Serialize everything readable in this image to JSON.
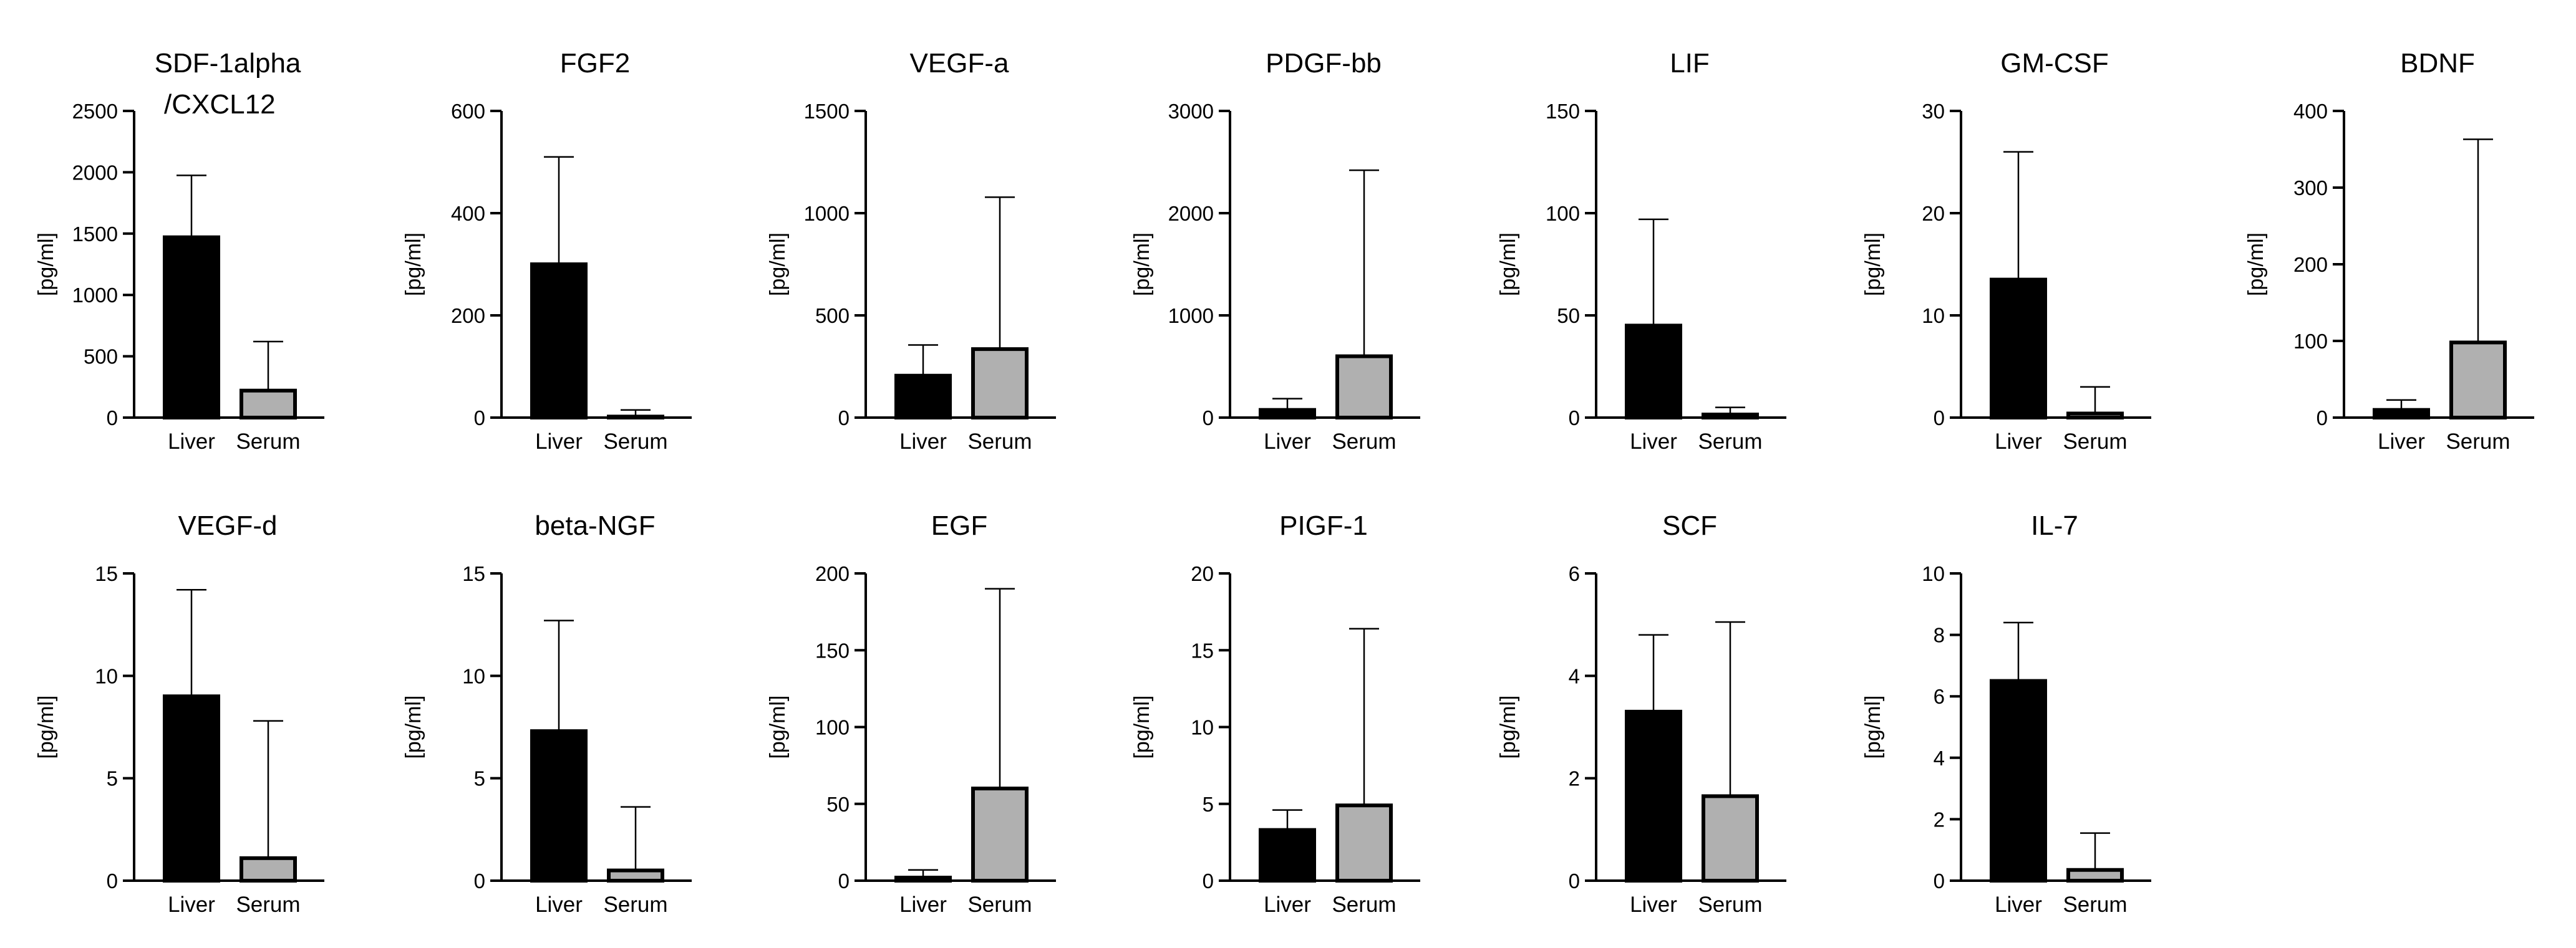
{
  "chart_data": [
    {
      "type": "bar",
      "title": "SDF-1alpha",
      "title_line2": "/CXCL12",
      "ylabel": "[pg/ml]",
      "categories": [
        "Liver",
        "Serum"
      ],
      "values": [
        1470,
        220
      ],
      "errors": [
        1975,
        620
      ],
      "ylim": [
        0,
        2500
      ],
      "yticks": [
        0,
        500,
        1000,
        1500,
        2000,
        2500
      ]
    },
    {
      "type": "bar",
      "title": "FGF2",
      "ylabel": "[pg/ml]",
      "categories": [
        "Liver",
        "Serum"
      ],
      "values": [
        300,
        2
      ],
      "errors": [
        510,
        15
      ],
      "ylim": [
        0,
        600
      ],
      "yticks": [
        0,
        200,
        400,
        600
      ]
    },
    {
      "type": "bar",
      "title": "VEGF-a",
      "ylabel": "[pg/ml]",
      "categories": [
        "Liver",
        "Serum"
      ],
      "values": [
        205,
        335
      ],
      "errors": [
        355,
        1078
      ],
      "ylim": [
        0,
        1500
      ],
      "yticks": [
        0,
        500,
        1000,
        1500
      ]
    },
    {
      "type": "bar",
      "title": "PDGF-bb",
      "ylabel": "[pg/ml]",
      "categories": [
        "Liver",
        "Serum"
      ],
      "values": [
        75,
        600
      ],
      "errors": [
        185,
        2420
      ],
      "ylim": [
        0,
        3000
      ],
      "yticks": [
        0,
        1000,
        2000,
        3000
      ]
    },
    {
      "type": "bar",
      "title": "LIF",
      "ylabel": "[pg/ml]",
      "categories": [
        "Liver",
        "Serum"
      ],
      "values": [
        45,
        1.5
      ],
      "errors": [
        97,
        5
      ],
      "ylim": [
        0,
        150
      ],
      "yticks": [
        0,
        50,
        100,
        150
      ]
    },
    {
      "type": "bar",
      "title": "GM-CSF",
      "ylabel": "[pg/ml]",
      "categories": [
        "Liver",
        "Serum"
      ],
      "values": [
        13.5,
        0.4
      ],
      "errors": [
        26,
        3
      ],
      "ylim": [
        0,
        30
      ],
      "yticks": [
        0,
        10,
        20,
        30
      ]
    },
    {
      "type": "bar",
      "title": "BDNF",
      "ylabel": "[pg/ml]",
      "categories": [
        "Liver",
        "Serum"
      ],
      "values": [
        10,
        98
      ],
      "errors": [
        23,
        363
      ],
      "ylim": [
        0,
        400
      ],
      "yticks": [
        0,
        100,
        200,
        300,
        400
      ]
    },
    {
      "type": "bar",
      "title": "VEGF-d",
      "ylabel": "[pg/ml]",
      "categories": [
        "Liver",
        "Serum"
      ],
      "values": [
        9,
        1.1
      ],
      "errors": [
        14.2,
        7.8
      ],
      "ylim": [
        0,
        15
      ],
      "yticks": [
        0,
        5,
        10,
        15
      ]
    },
    {
      "type": "bar",
      "title": "beta-NGF",
      "ylabel": "[pg/ml]",
      "categories": [
        "Liver",
        "Serum"
      ],
      "values": [
        7.3,
        0.5
      ],
      "errors": [
        12.7,
        3.6
      ],
      "ylim": [
        0,
        15
      ],
      "yticks": [
        0,
        5,
        10,
        15
      ]
    },
    {
      "type": "bar",
      "title": "EGF",
      "ylabel": "[pg/ml]",
      "categories": [
        "Liver",
        "Serum"
      ],
      "values": [
        2,
        60
      ],
      "errors": [
        7,
        190
      ],
      "ylim": [
        0,
        200
      ],
      "yticks": [
        0,
        50,
        100,
        150,
        200
      ]
    },
    {
      "type": "bar",
      "title": "PIGF-1",
      "ylabel": "[pg/ml]",
      "categories": [
        "Liver",
        "Serum"
      ],
      "values": [
        3.3,
        4.9
      ],
      "errors": [
        4.6,
        16.4
      ],
      "ylim": [
        0,
        20
      ],
      "yticks": [
        0,
        5,
        10,
        15,
        20
      ]
    },
    {
      "type": "bar",
      "title": "SCF",
      "ylabel": "[pg/ml]",
      "categories": [
        "Liver",
        "Serum"
      ],
      "values": [
        3.3,
        1.65
      ],
      "errors": [
        4.8,
        5.05
      ],
      "ylim": [
        0,
        6
      ],
      "yticks": [
        0,
        2,
        4,
        6
      ]
    },
    {
      "type": "bar",
      "title": "IL-7",
      "ylabel": "[pg/ml]",
      "categories": [
        "Liver",
        "Serum"
      ],
      "values": [
        6.5,
        0.35
      ],
      "errors": [
        8.4,
        1.55
      ],
      "ylim": [
        0,
        10
      ],
      "yticks": [
        0,
        2,
        4,
        6,
        8,
        10
      ]
    }
  ],
  "colors": {
    "liver": "#000000",
    "serum": "#b0b0b0",
    "axis": "#000000"
  }
}
